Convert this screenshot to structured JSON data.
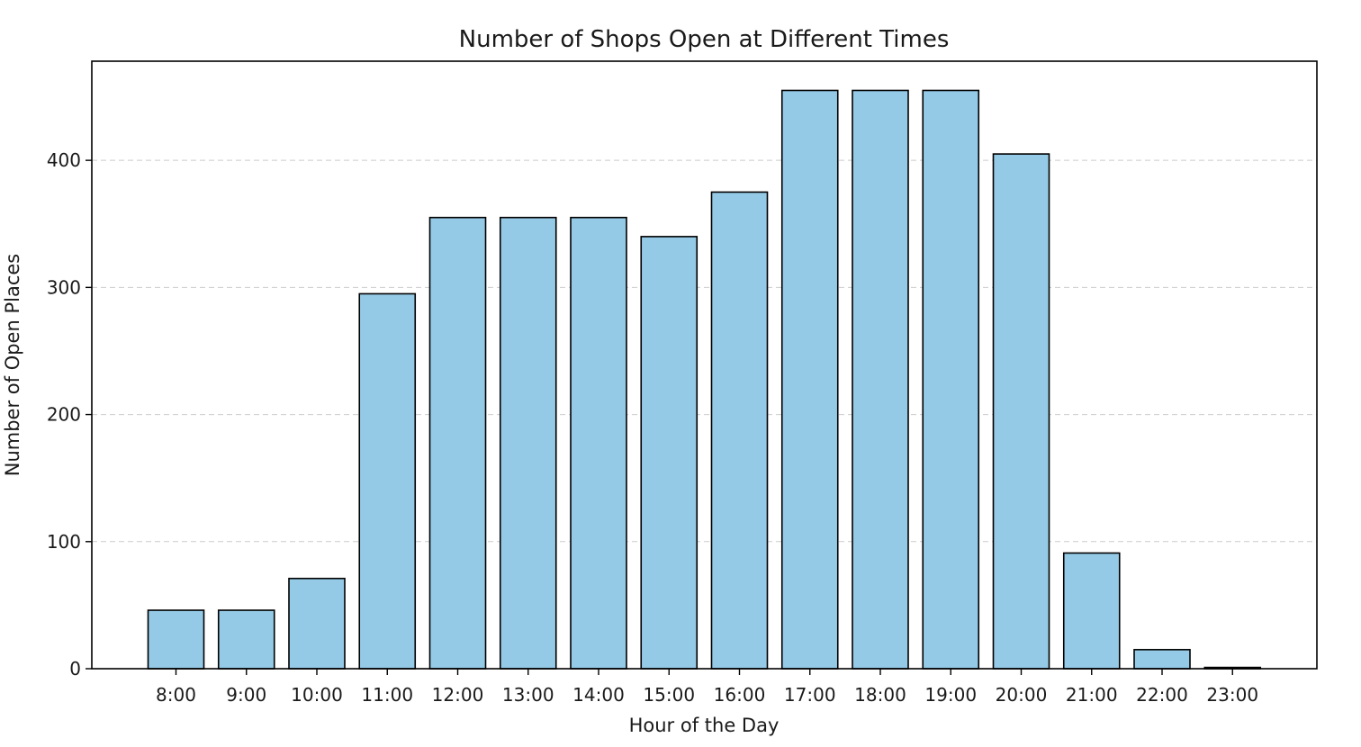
{
  "chart_data": {
    "type": "bar",
    "title": "Number of Shops Open at Different Times",
    "xlabel": "Hour of the Day",
    "ylabel": "Number of Open Places",
    "categories": [
      "8:00",
      "9:00",
      "10:00",
      "11:00",
      "12:00",
      "13:00",
      "14:00",
      "15:00",
      "16:00",
      "17:00",
      "18:00",
      "19:00",
      "20:00",
      "21:00",
      "22:00",
      "23:00"
    ],
    "values": [
      46,
      46,
      71,
      295,
      355,
      355,
      355,
      340,
      375,
      455,
      455,
      455,
      405,
      91,
      15,
      1
    ],
    "yticks": [
      0,
      100,
      200,
      300,
      400
    ],
    "ylim": [
      0,
      478
    ],
    "grid": "y-dashed",
    "colors": {
      "bar_fill": "#95cae6",
      "bar_edge": "#000000",
      "grid": "#cccccc"
    }
  }
}
